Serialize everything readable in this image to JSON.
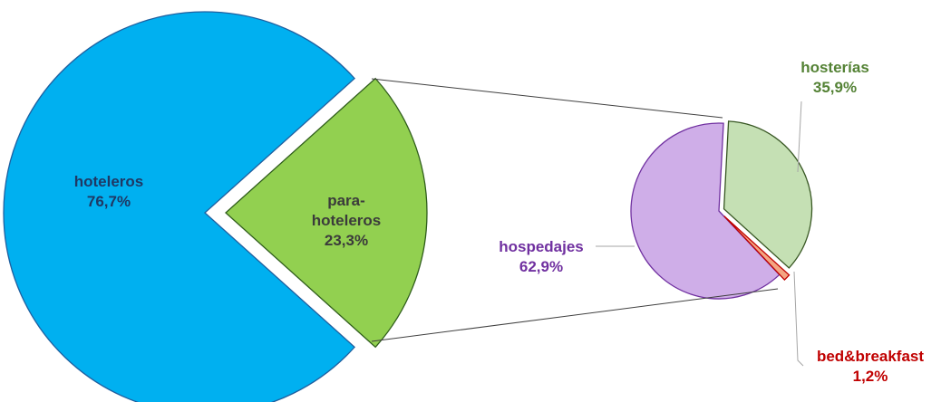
{
  "chart_data": [
    {
      "type": "pie",
      "categories": [
        "hoteleros",
        "para-hoteleros"
      ],
      "values": [
        76.7,
        23.3
      ],
      "value_labels": [
        "76,7%",
        "23,3%"
      ],
      "colors": [
        "#00b0f0",
        "#92d050"
      ],
      "label_colors": [
        "#1f3864",
        "#3b3b3b"
      ]
    },
    {
      "type": "pie",
      "categories": [
        "hospedajes",
        "hosterías",
        "bed&breakfast"
      ],
      "values": [
        62.9,
        35.9,
        1.2
      ],
      "value_labels": [
        "62,9%",
        "35,9%",
        "1,2%"
      ],
      "colors": [
        "#cfaee8",
        "#c5e0b4",
        "#f4a582"
      ],
      "label_colors": [
        "#7030a0",
        "#548235",
        "#c00000"
      ]
    }
  ]
}
